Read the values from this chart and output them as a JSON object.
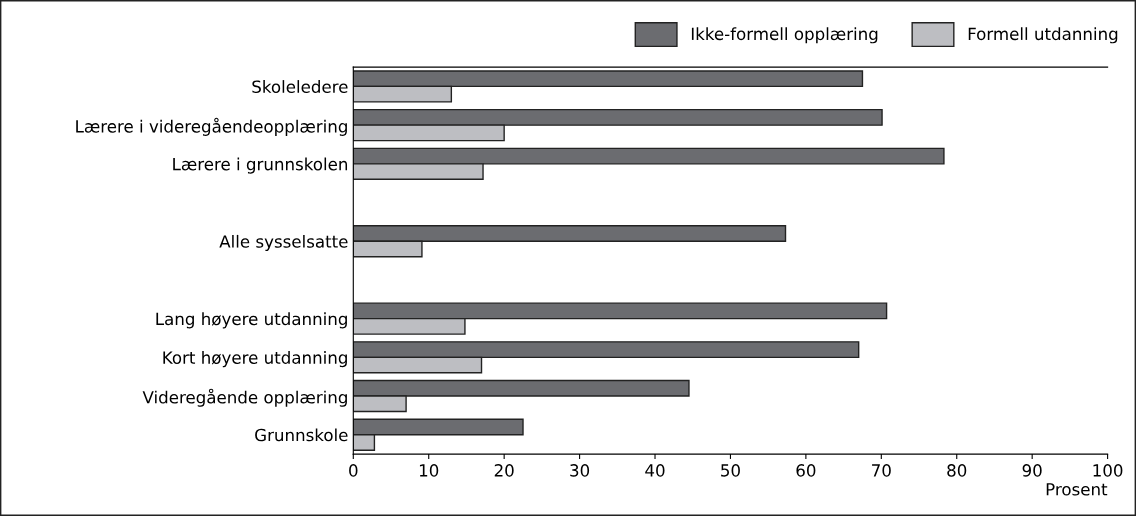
{
  "chart_data": {
    "type": "bar",
    "orientation": "horizontal",
    "xlabel": "Prosent",
    "categories": [
      "Skoleledere",
      "Lærere i videregåendeopplæring",
      "Lærere i grunnskolen",
      null,
      "Alle sysselsatte",
      null,
      "Lang høyere utdanning",
      "Kort høyere utdanning",
      "Videregående opplæring",
      "Grunnskole"
    ],
    "series": [
      {
        "name": "Ikke-formell opplæring",
        "color": "#6b6c70",
        "values": [
          67.5,
          70.1,
          78.3,
          null,
          57.3,
          null,
          70.7,
          67.0,
          44.5,
          22.5
        ]
      },
      {
        "name": "Formell utdanning",
        "color": "#bdbec2",
        "values": [
          13.0,
          20.0,
          17.2,
          null,
          9.1,
          null,
          14.8,
          17.0,
          7.0,
          2.8
        ]
      }
    ],
    "xlim": [
      0,
      100
    ],
    "xticks": [
      0,
      10,
      20,
      30,
      40,
      50,
      60,
      70,
      80,
      90,
      100
    ],
    "grid": false,
    "legend": "top right"
  }
}
